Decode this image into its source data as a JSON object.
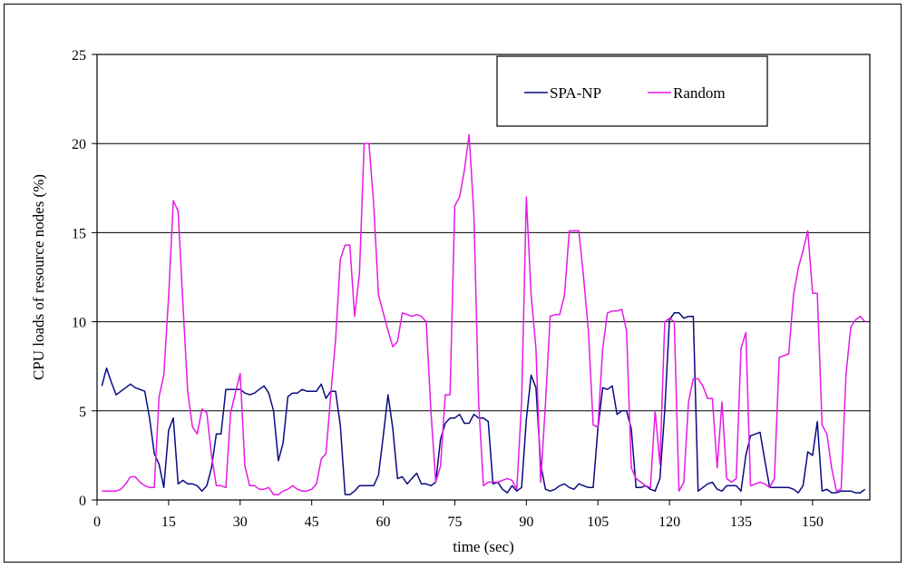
{
  "chart_data": {
    "type": "line",
    "title": "",
    "xlabel": "time (sec)",
    "ylabel": "CPU loads of resource nodes (%)",
    "xlim": [
      0,
      162
    ],
    "ylim": [
      0,
      25
    ],
    "x_ticks": [
      0,
      15,
      30,
      45,
      60,
      75,
      90,
      105,
      120,
      135,
      150
    ],
    "y_ticks": [
      0,
      5,
      10,
      15,
      20,
      25
    ],
    "grid": "horizontal",
    "legend_position": "top-right",
    "series": [
      {
        "name": "SPA-NP",
        "color": "#0a0a80",
        "points": [
          [
            1,
            6.4
          ],
          [
            2,
            7.4
          ],
          [
            3,
            6.6
          ],
          [
            4,
            5.9
          ],
          [
            5,
            6.1
          ],
          [
            6,
            6.3
          ],
          [
            7,
            6.5
          ],
          [
            8,
            6.3
          ],
          [
            9,
            6.2
          ],
          [
            10,
            6.1
          ],
          [
            11,
            4.6
          ],
          [
            12,
            2.6
          ],
          [
            13,
            2.0
          ],
          [
            14,
            0.7
          ],
          [
            15,
            3.9
          ],
          [
            16,
            4.6
          ],
          [
            17,
            0.9
          ],
          [
            18,
            1.1
          ],
          [
            19,
            0.9
          ],
          [
            20,
            0.9
          ],
          [
            21,
            0.8
          ],
          [
            22,
            0.5
          ],
          [
            23,
            0.8
          ],
          [
            24,
            1.8
          ],
          [
            25,
            3.7
          ],
          [
            26,
            3.7
          ],
          [
            27,
            6.2
          ],
          [
            28,
            6.2
          ],
          [
            29,
            6.2
          ],
          [
            30,
            6.2
          ],
          [
            31,
            6.0
          ],
          [
            32,
            5.9
          ],
          [
            33,
            6.0
          ],
          [
            34,
            6.2
          ],
          [
            35,
            6.4
          ],
          [
            36,
            6.0
          ],
          [
            37,
            5.0
          ],
          [
            38,
            2.2
          ],
          [
            39,
            3.2
          ],
          [
            40,
            5.8
          ],
          [
            41,
            6.0
          ],
          [
            42,
            6.0
          ],
          [
            43,
            6.2
          ],
          [
            44,
            6.1
          ],
          [
            45,
            6.1
          ],
          [
            46,
            6.1
          ],
          [
            47,
            6.5
          ],
          [
            48,
            5.7
          ],
          [
            49,
            6.1
          ],
          [
            50,
            6.1
          ],
          [
            51,
            4.2
          ],
          [
            52,
            0.3
          ],
          [
            53,
            0.3
          ],
          [
            54,
            0.5
          ],
          [
            55,
            0.8
          ],
          [
            56,
            0.8
          ],
          [
            57,
            0.8
          ],
          [
            58,
            0.8
          ],
          [
            59,
            1.4
          ],
          [
            60,
            3.6
          ],
          [
            61,
            5.9
          ],
          [
            62,
            4.0
          ],
          [
            63,
            1.2
          ],
          [
            64,
            1.3
          ],
          [
            65,
            0.9
          ],
          [
            66,
            1.2
          ],
          [
            67,
            1.5
          ],
          [
            68,
            0.9
          ],
          [
            69,
            0.9
          ],
          [
            70,
            0.8
          ],
          [
            71,
            1.0
          ],
          [
            72,
            3.4
          ],
          [
            73,
            4.3
          ],
          [
            74,
            4.6
          ],
          [
            75,
            4.6
          ],
          [
            76,
            4.8
          ],
          [
            77,
            4.3
          ],
          [
            78,
            4.3
          ],
          [
            79,
            4.8
          ],
          [
            80,
            4.6
          ],
          [
            81,
            4.6
          ],
          [
            82,
            4.4
          ],
          [
            83,
            0.9
          ],
          [
            84,
            1.0
          ],
          [
            85,
            0.6
          ],
          [
            86,
            0.4
          ],
          [
            87,
            0.8
          ],
          [
            88,
            0.5
          ],
          [
            89,
            0.7
          ],
          [
            90,
            4.5
          ],
          [
            91,
            7.0
          ],
          [
            92,
            6.3
          ],
          [
            93,
            2.0
          ],
          [
            94,
            0.6
          ],
          [
            95,
            0.5
          ],
          [
            96,
            0.6
          ],
          [
            97,
            0.8
          ],
          [
            98,
            0.9
          ],
          [
            99,
            0.7
          ],
          [
            100,
            0.6
          ],
          [
            101,
            0.9
          ],
          [
            102,
            0.8
          ],
          [
            103,
            0.7
          ],
          [
            104,
            0.7
          ],
          [
            105,
            4.0
          ],
          [
            106,
            6.3
          ],
          [
            107,
            6.2
          ],
          [
            108,
            6.4
          ],
          [
            109,
            4.8
          ],
          [
            110,
            5.0
          ],
          [
            111,
            5.0
          ],
          [
            112,
            4.0
          ],
          [
            113,
            0.7
          ],
          [
            114,
            0.7
          ],
          [
            115,
            0.8
          ],
          [
            116,
            0.6
          ],
          [
            117,
            0.5
          ],
          [
            118,
            1.2
          ],
          [
            119,
            5.0
          ],
          [
            120,
            10.1
          ],
          [
            121,
            10.5
          ],
          [
            122,
            10.5
          ],
          [
            123,
            10.2
          ],
          [
            124,
            10.3
          ],
          [
            125,
            10.3
          ],
          [
            126,
            0.5
          ],
          [
            127,
            0.7
          ],
          [
            128,
            0.9
          ],
          [
            129,
            1.0
          ],
          [
            130,
            0.6
          ],
          [
            131,
            0.5
          ],
          [
            132,
            0.8
          ],
          [
            133,
            0.8
          ],
          [
            134,
            0.8
          ],
          [
            135,
            0.5
          ],
          [
            136,
            2.5
          ],
          [
            137,
            3.6
          ],
          [
            138,
            3.7
          ],
          [
            139,
            3.8
          ],
          [
            140,
            2.2
          ],
          [
            141,
            0.7
          ],
          [
            142,
            0.7
          ],
          [
            143,
            0.7
          ],
          [
            144,
            0.7
          ],
          [
            145,
            0.7
          ],
          [
            146,
            0.6
          ],
          [
            147,
            0.4
          ],
          [
            148,
            0.8
          ],
          [
            149,
            2.7
          ],
          [
            150,
            2.5
          ],
          [
            151,
            4.4
          ],
          [
            152,
            0.5
          ],
          [
            153,
            0.6
          ],
          [
            154,
            0.4
          ],
          [
            155,
            0.4
          ],
          [
            156,
            0.5
          ],
          [
            157,
            0.5
          ],
          [
            158,
            0.5
          ],
          [
            159,
            0.4
          ],
          [
            160,
            0.4
          ],
          [
            161,
            0.6
          ]
        ]
      },
      {
        "name": "Random",
        "color": "#e61ae6",
        "points": [
          [
            1,
            0.5
          ],
          [
            2,
            0.5
          ],
          [
            3,
            0.5
          ],
          [
            4,
            0.5
          ],
          [
            5,
            0.6
          ],
          [
            6,
            0.9
          ],
          [
            7,
            1.3
          ],
          [
            8,
            1.3
          ],
          [
            9,
            1.0
          ],
          [
            10,
            0.8
          ],
          [
            11,
            0.7
          ],
          [
            12,
            0.7
          ],
          [
            13,
            5.8
          ],
          [
            14,
            7.0
          ],
          [
            15,
            11.4
          ],
          [
            16,
            16.8
          ],
          [
            17,
            16.2
          ],
          [
            18,
            11.0
          ],
          [
            19,
            6.1
          ],
          [
            20,
            4.1
          ],
          [
            21,
            3.7
          ],
          [
            22,
            5.1
          ],
          [
            23,
            4.9
          ],
          [
            24,
            2.5
          ],
          [
            25,
            0.8
          ],
          [
            26,
            0.8
          ],
          [
            27,
            0.7
          ],
          [
            28,
            4.9
          ],
          [
            29,
            6.0
          ],
          [
            30,
            7.1
          ],
          [
            31,
            1.9
          ],
          [
            32,
            0.8
          ],
          [
            33,
            0.8
          ],
          [
            34,
            0.6
          ],
          [
            35,
            0.6
          ],
          [
            36,
            0.7
          ],
          [
            37,
            0.3
          ],
          [
            38,
            0.3
          ],
          [
            39,
            0.5
          ],
          [
            40,
            0.6
          ],
          [
            41,
            0.8
          ],
          [
            42,
            0.6
          ],
          [
            43,
            0.5
          ],
          [
            44,
            0.5
          ],
          [
            45,
            0.6
          ],
          [
            46,
            0.9
          ],
          [
            47,
            2.3
          ],
          [
            48,
            2.6
          ],
          [
            49,
            5.9
          ],
          [
            50,
            9.0
          ],
          [
            51,
            13.5
          ],
          [
            52,
            14.3
          ],
          [
            53,
            14.3
          ],
          [
            54,
            10.3
          ],
          [
            55,
            12.7
          ],
          [
            56,
            20.0
          ],
          [
            57,
            20.0
          ],
          [
            58,
            16.6
          ],
          [
            59,
            11.5
          ],
          [
            60,
            10.5
          ],
          [
            61,
            9.5
          ],
          [
            62,
            8.6
          ],
          [
            63,
            8.9
          ],
          [
            64,
            10.5
          ],
          [
            65,
            10.4
          ],
          [
            66,
            10.3
          ],
          [
            67,
            10.4
          ],
          [
            68,
            10.3
          ],
          [
            69,
            10.0
          ],
          [
            70,
            5.0
          ],
          [
            71,
            1.0
          ],
          [
            72,
            1.9
          ],
          [
            73,
            5.9
          ],
          [
            74,
            5.9
          ],
          [
            75,
            16.5
          ],
          [
            76,
            17.0
          ],
          [
            77,
            18.5
          ],
          [
            78,
            20.5
          ],
          [
            79,
            16.0
          ],
          [
            80,
            5.5
          ],
          [
            81,
            0.8
          ],
          [
            82,
            1.0
          ],
          [
            83,
            1.0
          ],
          [
            84,
            1.0
          ],
          [
            85,
            1.1
          ],
          [
            86,
            1.2
          ],
          [
            87,
            1.1
          ],
          [
            88,
            0.6
          ],
          [
            89,
            5.5
          ],
          [
            90,
            17.0
          ],
          [
            91,
            11.5
          ],
          [
            92,
            8.5
          ],
          [
            93,
            1.0
          ],
          [
            94,
            5.4
          ],
          [
            95,
            10.3
          ],
          [
            96,
            10.4
          ],
          [
            97,
            10.4
          ],
          [
            98,
            11.5
          ],
          [
            99,
            15.1
          ],
          [
            100,
            15.1
          ],
          [
            101,
            15.1
          ],
          [
            102,
            12.5
          ],
          [
            103,
            9.5
          ],
          [
            104,
            4.2
          ],
          [
            105,
            4.1
          ],
          [
            106,
            8.5
          ],
          [
            107,
            10.5
          ],
          [
            108,
            10.6
          ],
          [
            109,
            10.6
          ],
          [
            110,
            10.7
          ],
          [
            111,
            9.5
          ],
          [
            112,
            1.8
          ],
          [
            113,
            1.2
          ],
          [
            114,
            1.0
          ],
          [
            115,
            0.8
          ],
          [
            116,
            0.7
          ],
          [
            117,
            5.0
          ],
          [
            118,
            2.0
          ],
          [
            119,
            10.0
          ],
          [
            120,
            10.2
          ],
          [
            121,
            10.0
          ],
          [
            122,
            0.5
          ],
          [
            123,
            1.0
          ],
          [
            124,
            5.5
          ],
          [
            125,
            6.8
          ],
          [
            126,
            6.8
          ],
          [
            127,
            6.4
          ],
          [
            128,
            5.7
          ],
          [
            129,
            5.7
          ],
          [
            130,
            1.8
          ],
          [
            131,
            5.5
          ],
          [
            132,
            1.2
          ],
          [
            133,
            1.0
          ],
          [
            134,
            1.2
          ],
          [
            135,
            8.5
          ],
          [
            136,
            9.4
          ],
          [
            137,
            0.8
          ],
          [
            138,
            0.9
          ],
          [
            139,
            1.0
          ],
          [
            140,
            0.9
          ],
          [
            141,
            0.7
          ],
          [
            142,
            1.2
          ],
          [
            143,
            8.0
          ],
          [
            144,
            8.1
          ],
          [
            145,
            8.2
          ],
          [
            146,
            11.5
          ],
          [
            147,
            13.0
          ],
          [
            148,
            14.0
          ],
          [
            149,
            15.1
          ],
          [
            150,
            11.6
          ],
          [
            151,
            11.6
          ],
          [
            152,
            4.2
          ],
          [
            153,
            3.7
          ],
          [
            154,
            1.8
          ],
          [
            155,
            0.5
          ],
          [
            156,
            0.6
          ],
          [
            157,
            7.0
          ],
          [
            158,
            9.7
          ],
          [
            159,
            10.1
          ],
          [
            160,
            10.3
          ],
          [
            161,
            10.0
          ]
        ]
      }
    ]
  }
}
